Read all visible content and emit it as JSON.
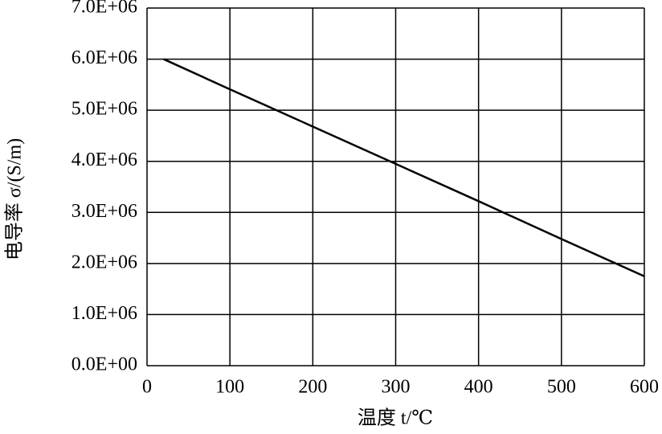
{
  "chart_data": {
    "type": "line",
    "x_label": "温度 t/℃",
    "y_label": "电导率 σ/(S/m)",
    "x": [
      20,
      100,
      200,
      300,
      400,
      500,
      600
    ],
    "series": [
      {
        "color": "#000000",
        "values": [
          6000000,
          5410000,
          4680000,
          3950000,
          3220000,
          2480000,
          1750000
        ]
      }
    ],
    "xlim": [
      0,
      600
    ],
    "xticks": [
      0,
      100,
      200,
      300,
      400,
      500,
      600
    ],
    "ylim": [
      0,
      7000000
    ],
    "yticks": [
      {
        "value": 0,
        "label": "0.0E+00"
      },
      {
        "value": 1000000,
        "label": "1.0E+06"
      },
      {
        "value": 2000000,
        "label": "2.0E+06"
      },
      {
        "value": 3000000,
        "label": "3.0E+06"
      },
      {
        "value": 4000000,
        "label": "4.0E+06"
      },
      {
        "value": 5000000,
        "label": "5.0E+06"
      },
      {
        "value": 6000000,
        "label": "6.0E+06"
      },
      {
        "value": 7000000,
        "label": "7.0E+06"
      }
    ],
    "grid": true
  }
}
